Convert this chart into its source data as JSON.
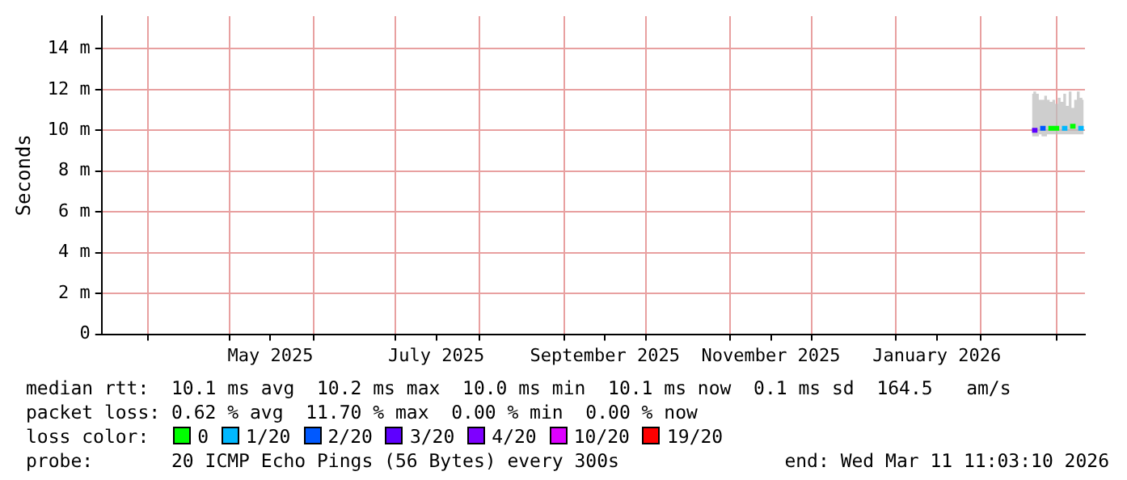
{
  "chart_data": {
    "type": "line",
    "ylabel": "Seconds",
    "legend_title": "loss color:",
    "legend": "bottom",
    "grid": true,
    "marker": "none",
    "line_style": "solid",
    "xlim": [
      "2025-03-15",
      "2026-03-11T11:03"
    ],
    "xticks": [
      {
        "value": "2025-04-01",
        "label": null
      },
      {
        "value": "2025-05-01",
        "label": null
      },
      {
        "value": "2025-05-16",
        "label": "May 2025"
      },
      {
        "value": "2025-06-01",
        "label": null
      },
      {
        "value": "2025-07-01",
        "label": null
      },
      {
        "value": "2025-07-16",
        "label": "July 2025"
      },
      {
        "value": "2025-08-01",
        "label": null
      },
      {
        "value": "2025-09-01",
        "label": null
      },
      {
        "value": "2025-09-16",
        "label": "September 2025"
      },
      {
        "value": "2025-10-01",
        "label": null
      },
      {
        "value": "2025-11-01",
        "label": null
      },
      {
        "value": "2025-11-16",
        "label": "November 2025"
      },
      {
        "value": "2025-12-01",
        "label": null
      },
      {
        "value": "2026-01-01",
        "label": null
      },
      {
        "value": "2026-01-16",
        "label": "January 2026"
      },
      {
        "value": "2026-02-01",
        "label": null
      },
      {
        "value": "2026-03-01",
        "label": null
      }
    ],
    "ylim": [
      0,
      15.6
    ],
    "yticks": [
      0,
      {
        "value": 2,
        "label": "2 m"
      },
      {
        "value": 4,
        "label": "4 m"
      },
      {
        "value": 6,
        "label": "6 m"
      },
      {
        "value": 8,
        "label": "8 m"
      },
      {
        "value": 10,
        "label": "10 m"
      },
      {
        "value": 12,
        "label": "12 m"
      },
      {
        "value": 14,
        "label": "14 m"
      }
    ],
    "x": [
      "2026-02-20",
      "2026-02-21",
      "2026-02-22",
      "2026-02-23",
      "2026-02-24",
      "2026-02-25",
      "2026-02-26",
      "2026-02-27",
      "2026-02-28",
      "2026-03-01",
      "2026-03-02",
      "2026-03-03",
      "2026-03-04",
      "2026-03-05",
      "2026-03-06",
      "2026-03-07",
      "2026-03-08",
      "2026-03-09",
      "2026-03-10",
      "2026-03-11"
    ],
    "series": [
      {
        "name": "0",
        "color": "#00ff00",
        "values": [
          null,
          null,
          null,
          null,
          null,
          null,
          10.1,
          10.1,
          10.1,
          10.1,
          10.1,
          null,
          null,
          null,
          10.2,
          10.2,
          10.2,
          null,
          null,
          null
        ],
        "lower": [
          9.7,
          9.7,
          9.7,
          9.8,
          9.7,
          9.7,
          9.8,
          9.8,
          9.8,
          9.8,
          9.8,
          9.8,
          9.8,
          9.8,
          9.8,
          9.8,
          9.8,
          9.8,
          9.8,
          9.8
        ],
        "upper": [
          11.8,
          11.9,
          11.8,
          11.5,
          11.5,
          11.7,
          11.5,
          11.4,
          11.5,
          11.3,
          11.6,
          11.4,
          11.8,
          11.2,
          11.9,
          11.1,
          11.5,
          11.9,
          11.6,
          11.5
        ]
      },
      {
        "name": "1/20",
        "color": "#00b8ff",
        "values": [
          null,
          null,
          null,
          null,
          null,
          null,
          null,
          null,
          null,
          null,
          null,
          10.1,
          10.1,
          10.1,
          null,
          null,
          null,
          10.1,
          10.1,
          10.1
        ]
      },
      {
        "name": "2/20",
        "color": "#0059ff",
        "values": [
          null,
          null,
          null,
          10.1,
          10.1,
          10.1,
          null,
          null,
          null,
          null,
          null,
          null,
          null,
          null,
          null,
          null,
          null,
          null,
          null,
          null
        ]
      },
      {
        "name": "3/20",
        "color": "#5e00ff",
        "values": [
          10.0,
          10.0,
          10.0,
          null,
          null,
          null,
          null,
          null,
          null,
          null,
          null,
          null,
          null,
          null,
          null,
          null,
          null,
          null,
          null,
          null
        ]
      },
      {
        "name": "4/20",
        "color": "#7e00ff",
        "values": [
          null,
          null,
          null,
          null,
          null,
          null,
          null,
          null,
          null,
          null,
          null,
          null,
          null,
          null,
          null,
          null,
          null,
          null,
          null,
          null
        ]
      },
      {
        "name": "10/20",
        "color": "#dd00ff",
        "values": [
          null,
          null,
          null,
          null,
          null,
          null,
          null,
          null,
          null,
          null,
          null,
          null,
          null,
          null,
          null,
          null,
          null,
          null,
          null,
          null
        ]
      },
      {
        "name": "19/20",
        "color": "#ff0000",
        "values": [
          null,
          null,
          null,
          null,
          null,
          null,
          null,
          null,
          null,
          null,
          null,
          null,
          null,
          null,
          null,
          null,
          null,
          null,
          null,
          null
        ]
      }
    ],
    "annotations": [
      "median rtt:  10.1 ms avg  10.2 ms max  10.0 ms min  10.1 ms now  0.1 ms sd  164.5   am/s",
      "packet loss: 0.62 % avg  11.70 % max  0.00 % min  0.00 % now",
      "probe:       20 ICMP Echo Pings (56 Bytes) every 300s",
      "end: Wed Mar 11 11:03:10 2026"
    ]
  }
}
